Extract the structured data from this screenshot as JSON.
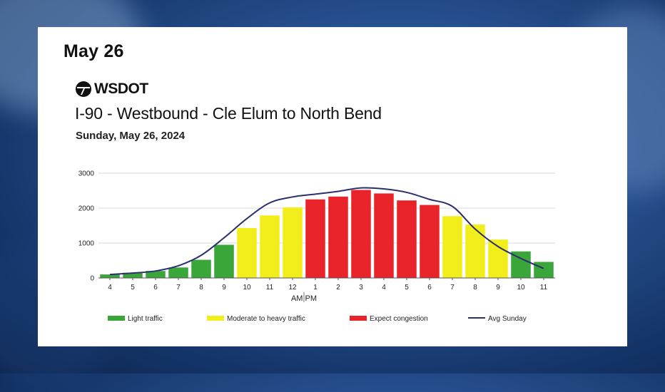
{
  "header": {
    "date_label": "May 26",
    "logo_text": "WSDOT",
    "title": "I-90 - Westbound - Cle Elum to North Bend",
    "subtitle": "Sunday, May 26, 2024"
  },
  "colors": {
    "light": "#3aa63a",
    "moderate": "#f2ee1c",
    "congestion": "#e8232a",
    "avg_line": "#2b2f6e",
    "grid": "#d9d9d9"
  },
  "chart_data": {
    "type": "bar",
    "categories": [
      "4",
      "5",
      "6",
      "7",
      "8",
      "9",
      "10",
      "11",
      "12",
      "1",
      "2",
      "3",
      "4",
      "5",
      "6",
      "7",
      "8",
      "9",
      "10",
      "11"
    ],
    "ylim": [
      0,
      3000
    ],
    "yticks": [
      "0",
      "1000",
      "2000",
      "3000"
    ],
    "am_pm_label": "AM PM",
    "series": [
      {
        "name": "Sunday, May 26, 2024",
        "values": [
          100,
          150,
          200,
          300,
          520,
          950,
          1430,
          1790,
          2020,
          2250,
          2330,
          2520,
          2420,
          2220,
          2090,
          1770,
          1530,
          1100,
          760,
          460
        ],
        "levels": [
          "light",
          "light",
          "light",
          "light",
          "light",
          "light",
          "moderate",
          "moderate",
          "moderate",
          "congestion",
          "congestion",
          "congestion",
          "congestion",
          "congestion",
          "congestion",
          "moderate",
          "moderate",
          "moderate",
          "light",
          "light"
        ]
      },
      {
        "name": "Avg Sunday",
        "type": "line",
        "values": [
          100,
          140,
          200,
          350,
          650,
          1150,
          1700,
          2150,
          2320,
          2400,
          2480,
          2580,
          2550,
          2450,
          2250,
          2050,
          1400,
          900,
          560,
          270
        ]
      }
    ],
    "legend": [
      {
        "key": "light",
        "label": "Light traffic"
      },
      {
        "key": "moderate",
        "label": "Moderate to heavy traffic"
      },
      {
        "key": "congestion",
        "label": "Expect congestion"
      },
      {
        "key": "avg",
        "label": "Avg Sunday"
      }
    ]
  }
}
